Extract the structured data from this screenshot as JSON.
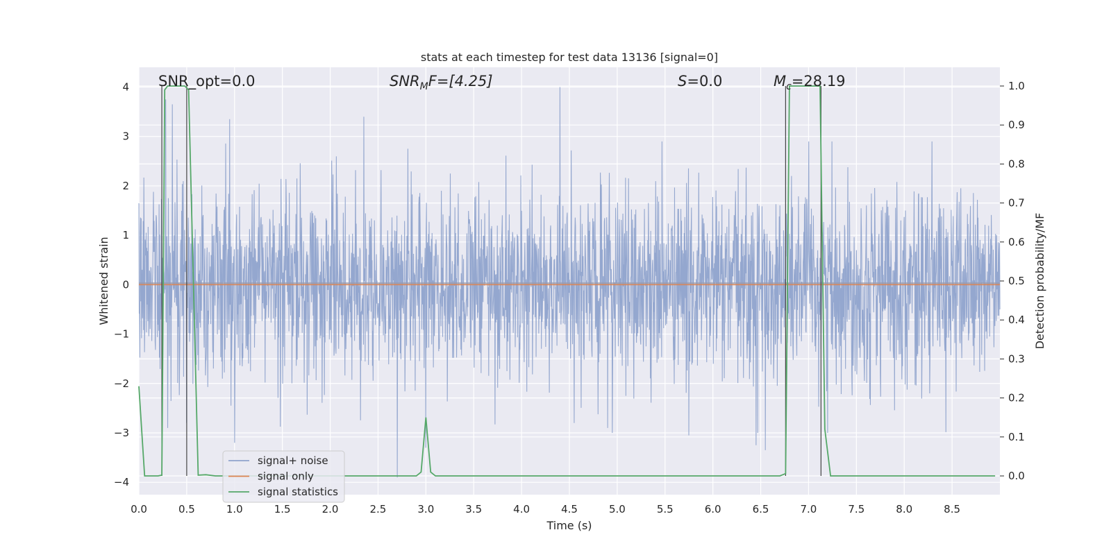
{
  "chart_data": {
    "type": "line",
    "title": "stats at each timestep for test data 13136 [signal=0]",
    "xlabel": "Time (s)",
    "ylabel": "Whitened strain",
    "y2label": "Detection probability/MF",
    "xlim": [
      0.0,
      9.0
    ],
    "ylim": [
      -4.25,
      4.4
    ],
    "y2lim": [
      -0.048,
      1.048
    ],
    "xticks": [
      "0.0",
      "0.5",
      "1.0",
      "1.5",
      "2.0",
      "2.5",
      "3.0",
      "3.5",
      "4.0",
      "4.5",
      "5.0",
      "5.5",
      "6.0",
      "6.5",
      "7.0",
      "7.5",
      "8.0",
      "8.5"
    ],
    "yticks": [
      "4",
      "3",
      "2",
      "1",
      "0",
      "−1",
      "−2",
      "−3",
      "−4"
    ],
    "y2ticks": [
      "1.0",
      "0.9",
      "0.8",
      "0.7",
      "0.6",
      "0.5",
      "0.4",
      "0.3",
      "0.2",
      "0.1",
      "0.0"
    ],
    "grid": true,
    "legend_position": "lower-left",
    "annotations": {
      "snr_opt": "SNR_opt=0.0",
      "snr_mf_main": "SNR",
      "snr_mf_sub": "M",
      "snr_mf_rest": "F=[4.25]",
      "s_main": "S",
      "s_rest": "=0.0",
      "mc_main": "M",
      "mc_sub": "c",
      "mc_rest": "=28.19"
    },
    "series": [
      {
        "name": "signal+ noise",
        "color": "#8fa3cc",
        "description": "whitened noise, approx gaussian with std ~1, peaks reaching about +4.0 near t=4.4 and -3.9 near t=2.7",
        "peaks": [
          [
            0.28,
            3.75
          ],
          [
            0.35,
            3.65
          ],
          [
            0.5,
            3.3
          ],
          [
            0.95,
            3.35
          ],
          [
            2.35,
            3.4
          ],
          [
            4.4,
            4.0
          ],
          [
            0.3,
            -2.9
          ],
          [
            0.5,
            -2.8
          ],
          [
            1.0,
            -3.2
          ],
          [
            2.7,
            -3.9
          ],
          [
            3.0,
            -3.3
          ],
          [
            4.55,
            -2.8
          ],
          [
            4.9,
            -2.9
          ],
          [
            5.75,
            -3.05
          ],
          [
            6.45,
            -3.25
          ],
          [
            6.55,
            -3.35
          ],
          [
            7.2,
            -3.0
          ]
        ]
      },
      {
        "name": "signal only",
        "color": "#dd8452",
        "values_constant": 0
      },
      {
        "name": "signal statistics",
        "color": "#55a868",
        "axis": "right",
        "x": [
          0.0,
          0.06,
          0.12,
          0.2,
          0.24,
          0.27,
          0.3,
          0.33,
          0.43,
          0.48,
          0.52,
          0.62,
          0.7,
          0.8,
          1.0,
          2.9,
          2.95,
          3.0,
          3.05,
          3.1,
          4.0,
          5.0,
          6.0,
          6.5,
          6.7,
          6.76,
          6.8,
          6.9,
          7.0,
          7.08,
          7.12,
          7.17,
          7.23,
          7.3,
          8.0,
          8.95
        ],
        "y": [
          0.23,
          0.0,
          0.0,
          0.0,
          0.002,
          0.99,
          1.0,
          1.0,
          1.0,
          1.0,
          0.99,
          0.002,
          0.003,
          0.0,
          0.0,
          0.0,
          0.01,
          0.15,
          0.01,
          0.0,
          0.0,
          0.0,
          0.0,
          0.0,
          0.0,
          0.006,
          1.0,
          1.0,
          1.0,
          1.0,
          1.0,
          0.12,
          0.0,
          0.0,
          0.0,
          0.0
        ]
      }
    ],
    "vertical_lines": [
      0.24,
      0.5,
      6.76,
      7.13
    ]
  }
}
